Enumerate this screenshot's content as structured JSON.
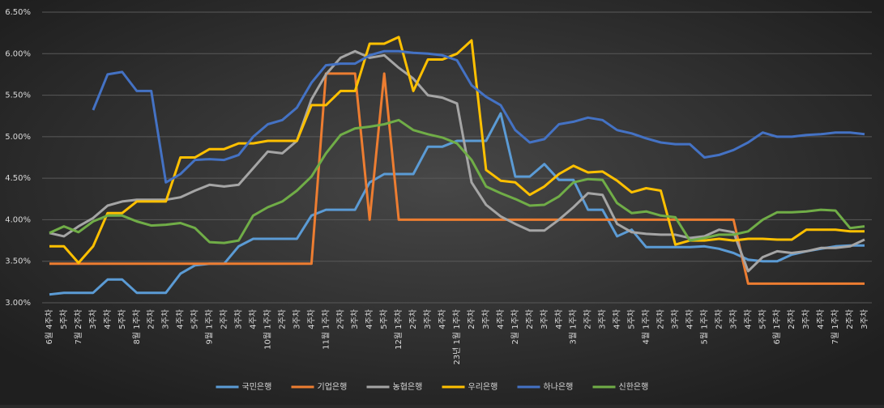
{
  "chart_data": {
    "type": "line",
    "categories": [
      "6월 4주차",
      "5주차",
      "7월 2주차",
      "3주차",
      "4주차",
      "5주차",
      "8월 1주차",
      "2주차",
      "3주차",
      "4주차",
      "5주차",
      "9월 1주차",
      "2주차",
      "3주차",
      "4주차",
      "10월 1주차",
      "2주차",
      "3주차",
      "4주차",
      "11월 1주차",
      "2주차",
      "3주차",
      "4주차",
      "5주차",
      "12월 1주차",
      "2주차",
      "3주차",
      "4주차",
      "23년 1월 1주차",
      "2주차",
      "3주차",
      "4주차",
      "2월 1주차",
      "2주차",
      "3주차",
      "4주차",
      "3월 1주차",
      "2주차",
      "3주차",
      "4주차",
      "5주차",
      "4월 1주차",
      "2주차",
      "3주차",
      "4주차",
      "5월 1주차",
      "2주차",
      "3주차",
      "4주차",
      "5주차",
      "6월 1주차",
      "2주차",
      "3주차",
      "4주차",
      "7월 1주차",
      "2주차",
      "3주차"
    ],
    "series": [
      {
        "name": "국민은행",
        "color": "#5b9bd5",
        "values": [
          3.1,
          3.12,
          3.12,
          3.12,
          3.28,
          3.28,
          3.12,
          3.12,
          3.12,
          3.35,
          3.45,
          3.47,
          3.47,
          3.68,
          3.77,
          3.77,
          3.77,
          3.77,
          4.05,
          4.12,
          4.12,
          4.12,
          4.45,
          4.55,
          4.55,
          4.55,
          4.88,
          4.88,
          4.95,
          4.95,
          4.95,
          5.28,
          4.52,
          4.52,
          4.67,
          4.48,
          4.48,
          4.12,
          4.12,
          3.8,
          3.88,
          3.67,
          3.67,
          3.67,
          3.67,
          3.68,
          3.65,
          3.6,
          3.52,
          3.5,
          3.5,
          3.58,
          3.62,
          3.65,
          3.68,
          3.69,
          3.69
        ]
      },
      {
        "name": "기업은행",
        "color": "#ed7d31",
        "values": [
          3.47,
          3.47,
          3.47,
          3.47,
          3.47,
          3.47,
          3.47,
          3.47,
          3.47,
          3.47,
          3.47,
          3.47,
          3.47,
          3.47,
          3.47,
          3.47,
          3.47,
          3.47,
          3.47,
          5.76,
          5.76,
          5.76,
          4.0,
          5.76,
          4.0,
          4.0,
          4.0,
          4.0,
          4.0,
          4.0,
          4.0,
          4.0,
          4.0,
          4.0,
          4.0,
          4.0,
          4.0,
          4.0,
          4.0,
          4.0,
          4.0,
          4.0,
          4.0,
          4.0,
          4.0,
          4.0,
          4.0,
          4.0,
          3.23,
          3.23,
          3.23,
          3.23,
          3.23,
          3.23,
          3.23,
          3.23,
          3.23
        ]
      },
      {
        "name": "농협은행",
        "color": "#a5a5a5",
        "values": [
          3.84,
          3.8,
          3.92,
          4.02,
          4.17,
          4.22,
          4.24,
          4.24,
          4.24,
          4.27,
          4.35,
          4.42,
          4.4,
          4.42,
          4.62,
          4.82,
          4.8,
          4.95,
          5.45,
          5.75,
          5.95,
          6.03,
          5.95,
          5.98,
          5.83,
          5.7,
          5.5,
          5.47,
          5.4,
          4.45,
          4.18,
          4.04,
          3.95,
          3.87,
          3.87,
          4.0,
          4.15,
          4.32,
          4.3,
          3.95,
          3.85,
          3.83,
          3.82,
          3.82,
          3.78,
          3.8,
          3.88,
          3.85,
          3.38,
          3.55,
          3.62,
          3.6,
          3.62,
          3.66,
          3.66,
          3.68,
          3.76
        ]
      },
      {
        "name": "우리은행",
        "color": "#ffc000",
        "values": [
          3.68,
          3.68,
          3.48,
          3.68,
          4.08,
          4.08,
          4.22,
          4.22,
          4.22,
          4.75,
          4.75,
          4.85,
          4.85,
          4.92,
          4.92,
          4.95,
          4.95,
          4.95,
          5.38,
          5.38,
          5.55,
          5.55,
          6.12,
          6.12,
          6.2,
          5.55,
          5.93,
          5.93,
          6.0,
          6.16,
          4.6,
          4.47,
          4.45,
          4.3,
          4.4,
          4.55,
          4.65,
          4.57,
          4.58,
          4.47,
          4.33,
          4.38,
          4.35,
          3.7,
          3.75,
          3.75,
          3.77,
          3.75,
          3.77,
          3.77,
          3.76,
          3.76,
          3.88,
          3.88,
          3.88,
          3.86,
          3.86
        ]
      },
      {
        "name": "하나은행",
        "color": "#4472c4",
        "values": [
          null,
          null,
          null,
          5.32,
          5.75,
          5.78,
          5.55,
          5.55,
          4.45,
          4.55,
          4.72,
          4.73,
          4.72,
          4.78,
          5.0,
          5.15,
          5.2,
          5.35,
          5.65,
          5.86,
          5.88,
          5.88,
          5.98,
          6.03,
          6.03,
          6.01,
          6.0,
          5.98,
          5.92,
          5.62,
          5.48,
          5.38,
          5.08,
          4.93,
          4.97,
          5.15,
          5.18,
          5.23,
          5.2,
          5.08,
          5.04,
          4.98,
          4.93,
          4.91,
          4.91,
          4.75,
          4.78,
          4.84,
          4.93,
          5.05,
          5.0,
          5.0,
          5.02,
          5.03,
          5.05,
          5.05,
          5.03
        ]
      },
      {
        "name": "신한은행",
        "color": "#70ad47",
        "values": [
          3.84,
          3.92,
          3.85,
          3.98,
          4.05,
          4.05,
          3.98,
          3.93,
          3.94,
          3.96,
          3.9,
          3.73,
          3.72,
          3.75,
          4.05,
          4.15,
          4.22,
          4.35,
          4.52,
          4.8,
          5.02,
          5.1,
          5.12,
          5.15,
          5.2,
          5.08,
          5.03,
          4.99,
          4.92,
          4.72,
          4.4,
          4.32,
          4.25,
          4.17,
          4.18,
          4.28,
          4.45,
          4.49,
          4.48,
          4.2,
          4.08,
          4.1,
          4.05,
          4.03,
          3.75,
          3.78,
          3.82,
          3.82,
          3.86,
          4.0,
          4.09,
          4.09,
          4.1,
          4.12,
          4.11,
          3.9,
          3.92
        ]
      }
    ],
    "ylim": [
      3,
      6.5
    ],
    "yticks": [
      {
        "value": 3,
        "label": "3.00%"
      },
      {
        "value": 3.5,
        "label": "3.50%"
      },
      {
        "value": 4,
        "label": "4.00%"
      },
      {
        "value": 4.5,
        "label": "4.50%"
      },
      {
        "value": 5,
        "label": "5.00%"
      },
      {
        "value": 5.5,
        "label": "5.50%"
      },
      {
        "value": 6,
        "label": "6.00%"
      },
      {
        "value": 6.5,
        "label": "6.50%"
      }
    ],
    "grid": true,
    "legend": "bottom"
  }
}
